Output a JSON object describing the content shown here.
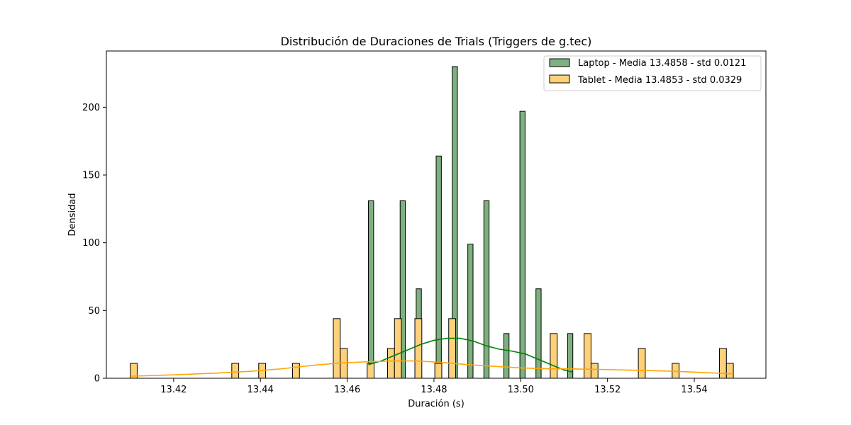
{
  "chart_data": {
    "type": "bar",
    "title": "Distribución de Duraciones de Trials (Triggers de g.tec)",
    "xlabel": "Duración (s)",
    "ylabel": "Densidad",
    "xlim": [
      13.4045,
      13.5565
    ],
    "ylim": [
      0,
      241.5
    ],
    "xticks": [
      13.42,
      13.44,
      13.46,
      13.48,
      13.5,
      13.52,
      13.54
    ],
    "xtick_labels": [
      "13.42",
      "13.44",
      "13.46",
      "13.48",
      "13.50",
      "13.52",
      "13.54"
    ],
    "yticks": [
      0,
      50,
      100,
      150,
      200
    ],
    "ytick_labels": [
      "0",
      "50",
      "100",
      "150",
      "200"
    ],
    "grid": false,
    "legend_position": "top-right",
    "series": [
      {
        "name": "Laptop - Media 13.4858 - std 0.0121",
        "fill_color": "#7fb07f",
        "line_color": "#008000",
        "bins": [
          {
            "x0": 13.4649,
            "x1": 13.4661,
            "density": 131
          },
          {
            "x0": 13.4722,
            "x1": 13.4734,
            "density": 131
          },
          {
            "x0": 13.4759,
            "x1": 13.4771,
            "density": 66
          },
          {
            "x0": 13.4805,
            "x1": 13.4817,
            "density": 164
          },
          {
            "x0": 13.4842,
            "x1": 13.4854,
            "density": 230
          },
          {
            "x0": 13.4878,
            "x1": 13.489,
            "density": 99
          },
          {
            "x0": 13.4915,
            "x1": 13.4927,
            "density": 131
          },
          {
            "x0": 13.4961,
            "x1": 13.4973,
            "density": 33
          },
          {
            "x0": 13.4998,
            "x1": 13.501,
            "density": 197
          },
          {
            "x0": 13.5035,
            "x1": 13.5047,
            "density": 66
          },
          {
            "x0": 13.5108,
            "x1": 13.512,
            "density": 33
          }
        ],
        "kde": [
          [
            13.4649,
            10
          ],
          [
            13.468,
            13
          ],
          [
            13.471,
            17
          ],
          [
            13.474,
            21
          ],
          [
            13.477,
            25
          ],
          [
            13.48,
            28
          ],
          [
            13.483,
            29.5
          ],
          [
            13.486,
            29.5
          ],
          [
            13.489,
            27.5
          ],
          [
            13.492,
            24
          ],
          [
            13.495,
            21.5
          ],
          [
            13.498,
            20
          ],
          [
            13.501,
            18
          ],
          [
            13.504,
            14
          ],
          [
            13.507,
            10
          ],
          [
            13.51,
            6
          ],
          [
            13.512,
            4.5
          ]
        ]
      },
      {
        "name": "Tablet - Media 13.4853 - std 0.0329",
        "fill_color": "#fdd07a",
        "line_color": "#ffa500",
        "bins": [
          {
            "x0": 13.41,
            "x1": 13.4116,
            "density": 11
          },
          {
            "x0": 13.4334,
            "x1": 13.435,
            "density": 11
          },
          {
            "x0": 13.4396,
            "x1": 13.4412,
            "density": 11
          },
          {
            "x0": 13.4474,
            "x1": 13.449,
            "density": 11
          },
          {
            "x0": 13.4568,
            "x1": 13.4584,
            "density": 44
          },
          {
            "x0": 13.4584,
            "x1": 13.46,
            "density": 22
          },
          {
            "x0": 13.4646,
            "x1": 13.4662,
            "density": 11
          },
          {
            "x0": 13.4693,
            "x1": 13.4709,
            "density": 22
          },
          {
            "x0": 13.4709,
            "x1": 13.4725,
            "density": 44
          },
          {
            "x0": 13.4756,
            "x1": 13.4772,
            "density": 44
          },
          {
            "x0": 13.4802,
            "x1": 13.4818,
            "density": 11
          },
          {
            "x0": 13.4834,
            "x1": 13.485,
            "density": 44
          },
          {
            "x0": 13.5068,
            "x1": 13.5084,
            "density": 33
          },
          {
            "x0": 13.5146,
            "x1": 13.5162,
            "density": 33
          },
          {
            "x0": 13.5162,
            "x1": 13.5178,
            "density": 11
          },
          {
            "x0": 13.5271,
            "x1": 13.5287,
            "density": 22
          },
          {
            "x0": 13.5349,
            "x1": 13.5365,
            "density": 11
          },
          {
            "x0": 13.5458,
            "x1": 13.5474,
            "density": 22
          },
          {
            "x0": 13.5474,
            "x1": 13.549,
            "density": 11
          }
        ],
        "kde": [
          [
            13.41,
            1.5
          ],
          [
            13.42,
            2.5
          ],
          [
            13.43,
            3.8
          ],
          [
            13.438,
            5.2
          ],
          [
            13.445,
            7
          ],
          [
            13.452,
            9.5
          ],
          [
            13.458,
            11.2
          ],
          [
            13.465,
            12.2
          ],
          [
            13.47,
            12.7
          ],
          [
            13.476,
            12.8
          ],
          [
            13.482,
            11.6
          ],
          [
            13.488,
            10
          ],
          [
            13.494,
            8.8
          ],
          [
            13.5,
            7.6
          ],
          [
            13.506,
            7
          ],
          [
            13.512,
            6.9
          ],
          [
            13.52,
            6.4
          ],
          [
            13.528,
            5.8
          ],
          [
            13.535,
            5.2
          ],
          [
            13.542,
            4.2
          ],
          [
            13.549,
            3.2
          ]
        ]
      }
    ]
  }
}
